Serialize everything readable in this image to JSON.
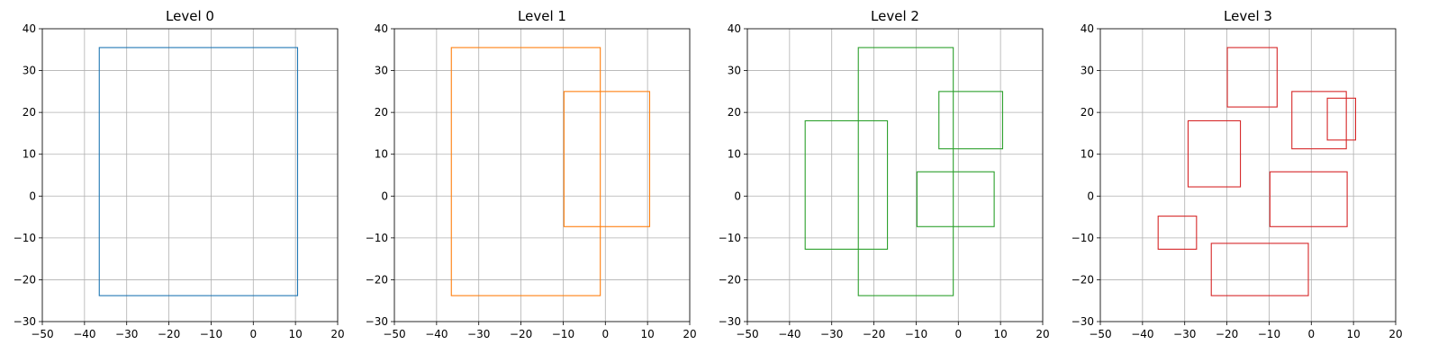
{
  "chart_data": [
    {
      "type": "rectangles",
      "title": "Level 0",
      "color": "#1f77b4",
      "xlim": [
        -50,
        20
      ],
      "ylim": [
        -30,
        40
      ],
      "xticks": [
        -50,
        -40,
        -30,
        -20,
        -10,
        0,
        10,
        20
      ],
      "yticks": [
        -30,
        -20,
        -10,
        0,
        10,
        20,
        30,
        40
      ],
      "grid": true,
      "rects": [
        {
          "x0": -36.5,
          "x1": 10.5,
          "y0": -23.8,
          "y1": 35.5
        }
      ]
    },
    {
      "type": "rectangles",
      "title": "Level 1",
      "color": "#ff7f0e",
      "xlim": [
        -50,
        20
      ],
      "ylim": [
        -30,
        40
      ],
      "xticks": [
        -50,
        -40,
        -30,
        -20,
        -10,
        0,
        10,
        20
      ],
      "yticks": [
        -30,
        -20,
        -10,
        0,
        10,
        20,
        30,
        40
      ],
      "grid": true,
      "rects": [
        {
          "x0": -36.5,
          "x1": -1.2,
          "y0": -23.8,
          "y1": 35.5
        },
        {
          "x0": -9.8,
          "x1": 10.5,
          "y0": -7.3,
          "y1": 25.0
        }
      ]
    },
    {
      "type": "rectangles",
      "title": "Level 2",
      "color": "#2ca02c",
      "xlim": [
        -50,
        20
      ],
      "ylim": [
        -30,
        40
      ],
      "xticks": [
        -50,
        -40,
        -30,
        -20,
        -10,
        0,
        10,
        20
      ],
      "yticks": [
        -30,
        -20,
        -10,
        0,
        10,
        20,
        30,
        40
      ],
      "grid": true,
      "rects": [
        {
          "x0": -23.7,
          "x1": -1.2,
          "y0": -23.8,
          "y1": 35.5
        },
        {
          "x0": -36.3,
          "x1": -16.8,
          "y0": -12.7,
          "y1": 18.0
        },
        {
          "x0": -4.6,
          "x1": 10.5,
          "y0": 11.3,
          "y1": 25.0
        },
        {
          "x0": -9.8,
          "x1": 8.5,
          "y0": -7.3,
          "y1": 5.8
        }
      ]
    },
    {
      "type": "rectangles",
      "title": "Level 3",
      "color": "#d62728",
      "xlim": [
        -50,
        20
      ],
      "ylim": [
        -30,
        40
      ],
      "xticks": [
        -50,
        -40,
        -30,
        -20,
        -10,
        0,
        10,
        20
      ],
      "yticks": [
        -30,
        -20,
        -10,
        0,
        10,
        20,
        30,
        40
      ],
      "grid": true,
      "rects": [
        {
          "x0": -19.9,
          "x1": -8.1,
          "y0": 21.3,
          "y1": 35.5
        },
        {
          "x0": -4.6,
          "x1": 8.3,
          "y0": 11.3,
          "y1": 25.0
        },
        {
          "x0": 3.8,
          "x1": 10.5,
          "y0": 13.4,
          "y1": 23.4
        },
        {
          "x0": -29.2,
          "x1": -16.8,
          "y0": 2.2,
          "y1": 18.0
        },
        {
          "x0": -9.8,
          "x1": 8.5,
          "y0": -7.3,
          "y1": 5.8
        },
        {
          "x0": -36.3,
          "x1": -27.2,
          "y0": -12.7,
          "y1": -4.8
        },
        {
          "x0": -23.7,
          "x1": -0.7,
          "y0": -23.8,
          "y1": -11.3
        }
      ]
    }
  ]
}
